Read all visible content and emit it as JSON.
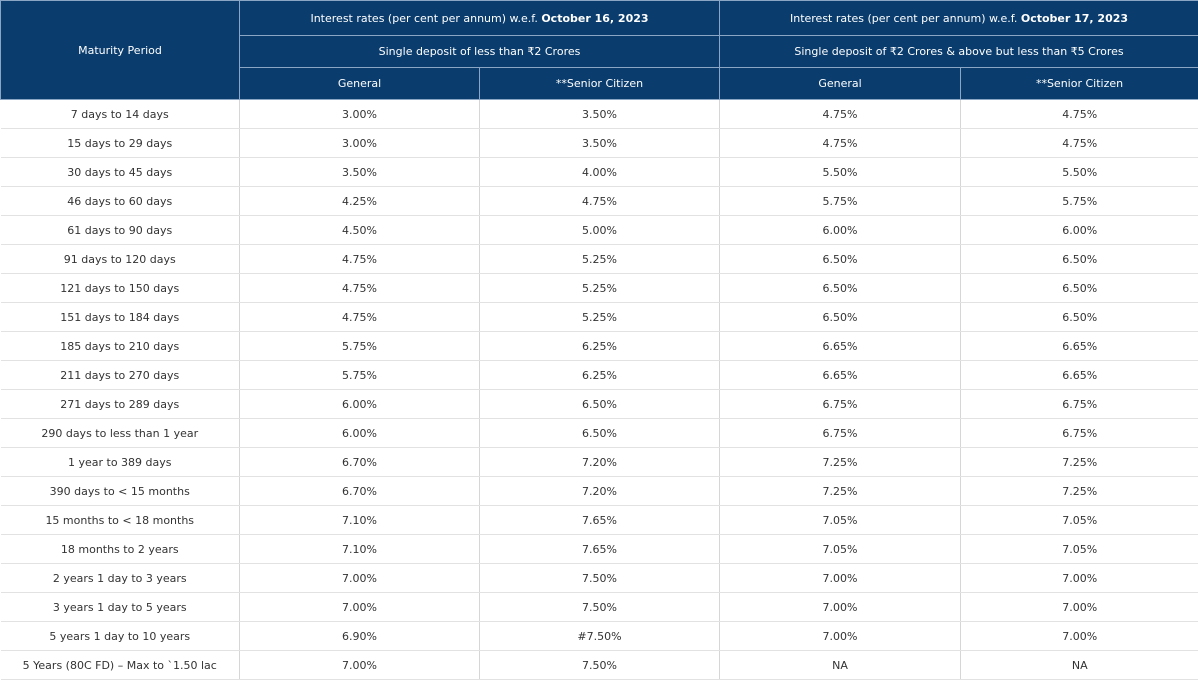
{
  "header": {
    "maturity_label": "Maturity Period",
    "group1": {
      "prefix": "Interest rates (per cent per annum) w.e.f.",
      "date": "October 16, 2023",
      "subtitle": "Single deposit of less than ₹2 Crores"
    },
    "group2": {
      "prefix": "Interest rates (per cent per annum) w.e.f.",
      "date": "October 17, 2023",
      "subtitle": "Single deposit of ₹2 Crores & above but less than ₹5 Crores"
    },
    "general_label": "General",
    "senior_label": "**Senior Citizen"
  },
  "rows": [
    [
      "7 days to 14 days",
      "3.00%",
      "3.50%",
      "4.75%",
      "4.75%"
    ],
    [
      "15 days to 29 days",
      "3.00%",
      "3.50%",
      "4.75%",
      "4.75%"
    ],
    [
      "30 days to 45 days",
      "3.50%",
      "4.00%",
      "5.50%",
      "5.50%"
    ],
    [
      "46 days to 60 days",
      "4.25%",
      "4.75%",
      "5.75%",
      "5.75%"
    ],
    [
      "61 days to 90 days",
      "4.50%",
      "5.00%",
      "6.00%",
      "6.00%"
    ],
    [
      "91 days to 120 days",
      "4.75%",
      "5.25%",
      "6.50%",
      "6.50%"
    ],
    [
      "121 days to 150 days",
      "4.75%",
      "5.25%",
      "6.50%",
      "6.50%"
    ],
    [
      "151 days to 184 days",
      "4.75%",
      "5.25%",
      "6.50%",
      "6.50%"
    ],
    [
      "185 days to 210 days",
      "5.75%",
      "6.25%",
      "6.65%",
      "6.65%"
    ],
    [
      "211 days to 270 days",
      "5.75%",
      "6.25%",
      "6.65%",
      "6.65%"
    ],
    [
      "271 days to 289 days",
      "6.00%",
      "6.50%",
      "6.75%",
      "6.75%"
    ],
    [
      "290 days to less than 1 year",
      "6.00%",
      "6.50%",
      "6.75%",
      "6.75%"
    ],
    [
      "1 year to 389 days",
      "6.70%",
      "7.20%",
      "7.25%",
      "7.25%"
    ],
    [
      "390 days to < 15 months",
      "6.70%",
      "7.20%",
      "7.25%",
      "7.25%"
    ],
    [
      "15 months to < 18 months",
      "7.10%",
      "7.65%",
      "7.05%",
      "7.05%"
    ],
    [
      "18 months to 2 years",
      "7.10%",
      "7.65%",
      "7.05%",
      "7.05%"
    ],
    [
      "2 years 1 day to 3 years",
      "7.00%",
      "7.50%",
      "7.00%",
      "7.00%"
    ],
    [
      "3 years 1 day to 5 years",
      "7.00%",
      "7.50%",
      "7.00%",
      "7.00%"
    ],
    [
      "5 years 1 day to 10 years",
      "6.90%",
      "#7.50%",
      "7.00%",
      "7.00%"
    ],
    [
      "5 Years (80C FD) – Max to `1.50 lac",
      "7.00%",
      "7.50%",
      "NA",
      "NA"
    ]
  ]
}
